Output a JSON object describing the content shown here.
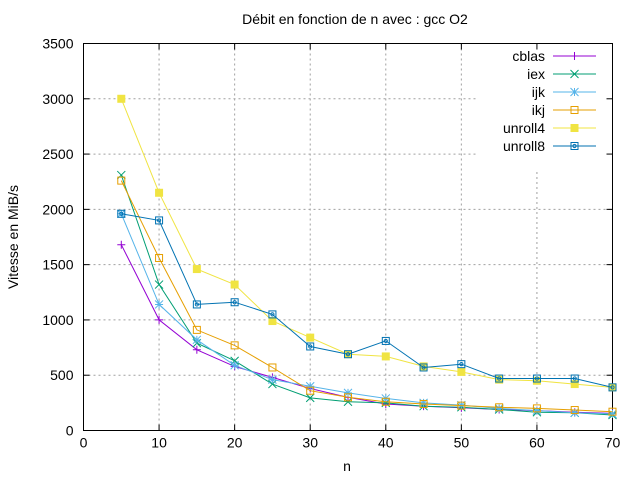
{
  "chart_data": {
    "type": "line",
    "title": "Débit en fonction de n avec :  gcc O2",
    "xlabel": "n",
    "ylabel": "Vitesse en MiB/s",
    "xlim": [
      0,
      70
    ],
    "ylim": [
      0,
      3500
    ],
    "xticks": [
      0,
      10,
      20,
      30,
      40,
      50,
      60,
      70
    ],
    "yticks": [
      0,
      500,
      1000,
      1500,
      2000,
      2500,
      3000,
      3500
    ],
    "grid": true,
    "legend_position": "top-right",
    "series": [
      {
        "name": "cblas",
        "color": "#9400d3",
        "marker": "plus",
        "x": [
          5,
          10,
          15,
          20,
          25,
          30,
          35,
          40,
          45,
          50,
          55,
          60,
          65,
          70
        ],
        "y": [
          1680,
          1000,
          730,
          580,
          480,
          380,
          300,
          240,
          220,
          205,
          190,
          180,
          165,
          155
        ]
      },
      {
        "name": "iex",
        "color": "#009e73",
        "marker": "x",
        "x": [
          5,
          10,
          15,
          20,
          25,
          30,
          35,
          40,
          45,
          50,
          55,
          60,
          65,
          70
        ],
        "y": [
          2310,
          1320,
          790,
          630,
          420,
          295,
          260,
          250,
          220,
          210,
          190,
          165,
          160,
          140
        ]
      },
      {
        "name": "ijk",
        "color": "#56b4e9",
        "marker": "star",
        "x": [
          5,
          10,
          15,
          20,
          25,
          30,
          35,
          40,
          45,
          50,
          55,
          60,
          65,
          70
        ],
        "y": [
          1960,
          1140,
          820,
          590,
          460,
          400,
          340,
          290,
          250,
          230,
          200,
          180,
          160,
          150
        ]
      },
      {
        "name": "ikj",
        "color": "#e69f00",
        "marker": "open-square",
        "x": [
          5,
          10,
          15,
          20,
          25,
          30,
          35,
          40,
          45,
          50,
          55,
          60,
          65,
          70
        ],
        "y": [
          2260,
          1560,
          910,
          770,
          570,
          360,
          300,
          260,
          240,
          225,
          210,
          200,
          185,
          170
        ]
      },
      {
        "name": "unroll4",
        "color": "#f0e442",
        "marker": "filled-square",
        "x": [
          5,
          10,
          15,
          20,
          25,
          30,
          35,
          40,
          45,
          50,
          55,
          60,
          65,
          70
        ],
        "y": [
          3000,
          2150,
          1460,
          1320,
          990,
          840,
          690,
          670,
          580,
          530,
          460,
          450,
          420,
          390
        ]
      },
      {
        "name": "unroll8",
        "color": "#0072b2",
        "marker": "circle-square",
        "x": [
          5,
          10,
          15,
          20,
          25,
          30,
          35,
          40,
          45,
          50,
          55,
          60,
          65,
          70
        ],
        "y": [
          1960,
          1900,
          1140,
          1160,
          1050,
          760,
          690,
          810,
          570,
          600,
          470,
          470,
          470,
          390
        ]
      }
    ]
  }
}
